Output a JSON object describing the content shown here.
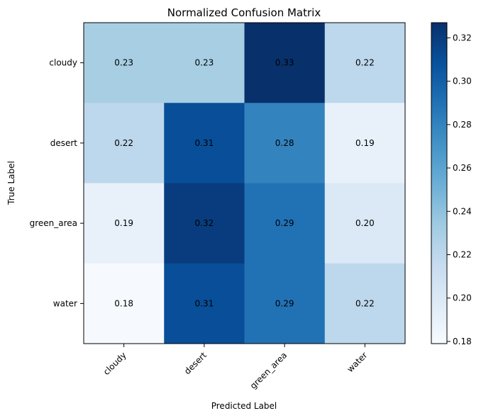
{
  "chart_data": {
    "type": "heatmap",
    "title": "Normalized Confusion Matrix",
    "xlabel": "Predicted Label",
    "ylabel": "True Label",
    "x_categories": [
      "cloudy",
      "desert",
      "green_area",
      "water"
    ],
    "y_categories": [
      "cloudy",
      "desert",
      "green_area",
      "water"
    ],
    "values": [
      [
        0.23,
        0.23,
        0.33,
        0.22
      ],
      [
        0.22,
        0.31,
        0.28,
        0.19
      ],
      [
        0.19,
        0.32,
        0.29,
        0.2
      ],
      [
        0.18,
        0.31,
        0.29,
        0.22
      ]
    ],
    "value_labels": [
      [
        "0.23",
        "0.23",
        "0.33",
        "0.22"
      ],
      [
        "0.22",
        "0.31",
        "0.28",
        "0.19"
      ],
      [
        "0.19",
        "0.32",
        "0.29",
        "0.20"
      ],
      [
        "0.18",
        "0.31",
        "0.29",
        "0.22"
      ]
    ],
    "colormap": "Blues",
    "colormap_stops": [
      "#f7fbff",
      "#deebf7",
      "#c6dbef",
      "#9ecae1",
      "#6baed6",
      "#4292c6",
      "#2171b5",
      "#08519c",
      "#08306b"
    ],
    "color_range": [
      0.179,
      0.327
    ],
    "colorbar_ticks": [
      0.18,
      0.2,
      0.22,
      0.24,
      0.26,
      0.28,
      0.3,
      0.32
    ],
    "colorbar_tick_labels": [
      "0.18",
      "0.20",
      "0.22",
      "0.24",
      "0.26",
      "0.28",
      "0.30",
      "0.32"
    ],
    "grid": false
  }
}
